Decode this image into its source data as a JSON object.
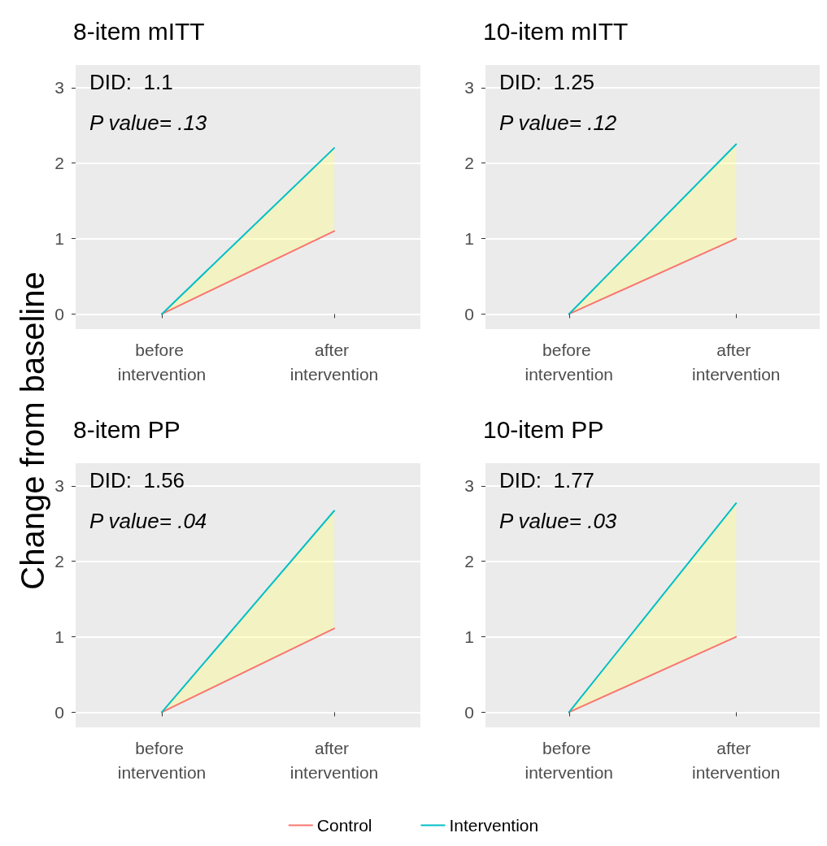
{
  "chart_data": [
    {
      "type": "line",
      "title": "8-item mITT",
      "ylabel": "Change from baseline",
      "categories": [
        "before intervention",
        "after intervention"
      ],
      "ylim": [
        -0.2,
        3.3
      ],
      "yticks": [
        0,
        1,
        2,
        3
      ],
      "grid": true,
      "legend": false,
      "marker": "none",
      "annotations": [
        "DID:  1.1",
        "P value= .13"
      ],
      "series": [
        {
          "color": "#f8766d",
          "values": [
            0,
            1.1
          ]
        },
        {
          "color": "#00bfc4",
          "values": [
            0,
            2.2
          ],
          "lower": [
            0,
            1.1
          ],
          "upper": [
            0,
            2.2
          ]
        }
      ]
    },
    {
      "type": "line",
      "title": "10-item mITT",
      "categories": [
        "before intervention",
        "after intervention"
      ],
      "ylim": [
        -0.2,
        3.3
      ],
      "yticks": [
        0,
        1,
        2,
        3
      ],
      "grid": true,
      "legend": false,
      "marker": "none",
      "annotations": [
        "DID:  1.25",
        "P value= .12"
      ],
      "series": [
        {
          "color": "#f8766d",
          "values": [
            0,
            1.0
          ]
        },
        {
          "color": "#00bfc4",
          "values": [
            0,
            2.25
          ],
          "lower": [
            0,
            1.0
          ],
          "upper": [
            0,
            2.25
          ]
        }
      ]
    },
    {
      "type": "line",
      "title": "8-item PP",
      "categories": [
        "before intervention",
        "after intervention"
      ],
      "ylim": [
        -0.2,
        3.3
      ],
      "yticks": [
        0,
        1,
        2,
        3
      ],
      "grid": true,
      "legend": false,
      "marker": "none",
      "annotations": [
        "DID:  1.56",
        "P value= .04"
      ],
      "series": [
        {
          "color": "#f8766d",
          "values": [
            0,
            1.11
          ]
        },
        {
          "color": "#00bfc4",
          "values": [
            0,
            2.67
          ],
          "lower": [
            0,
            1.11
          ],
          "upper": [
            0,
            2.67
          ]
        }
      ]
    },
    {
      "type": "line",
      "title": "10-item PP",
      "categories": [
        "before intervention",
        "after intervention"
      ],
      "ylim": [
        -0.2,
        3.3
      ],
      "yticks": [
        0,
        1,
        2,
        3
      ],
      "grid": true,
      "legend": "bottom",
      "marker": "none",
      "annotations": [
        "DID:  1.77",
        "P value= .03"
      ],
      "series": [
        {
          "name": "Control",
          "color": "#f8766d",
          "values": [
            0,
            1.0
          ]
        },
        {
          "name": "Intervention",
          "color": "#00bfc4",
          "values": [
            0,
            2.77
          ],
          "lower": [
            0,
            1.0
          ],
          "upper": [
            0,
            2.77
          ]
        }
      ]
    }
  ]
}
